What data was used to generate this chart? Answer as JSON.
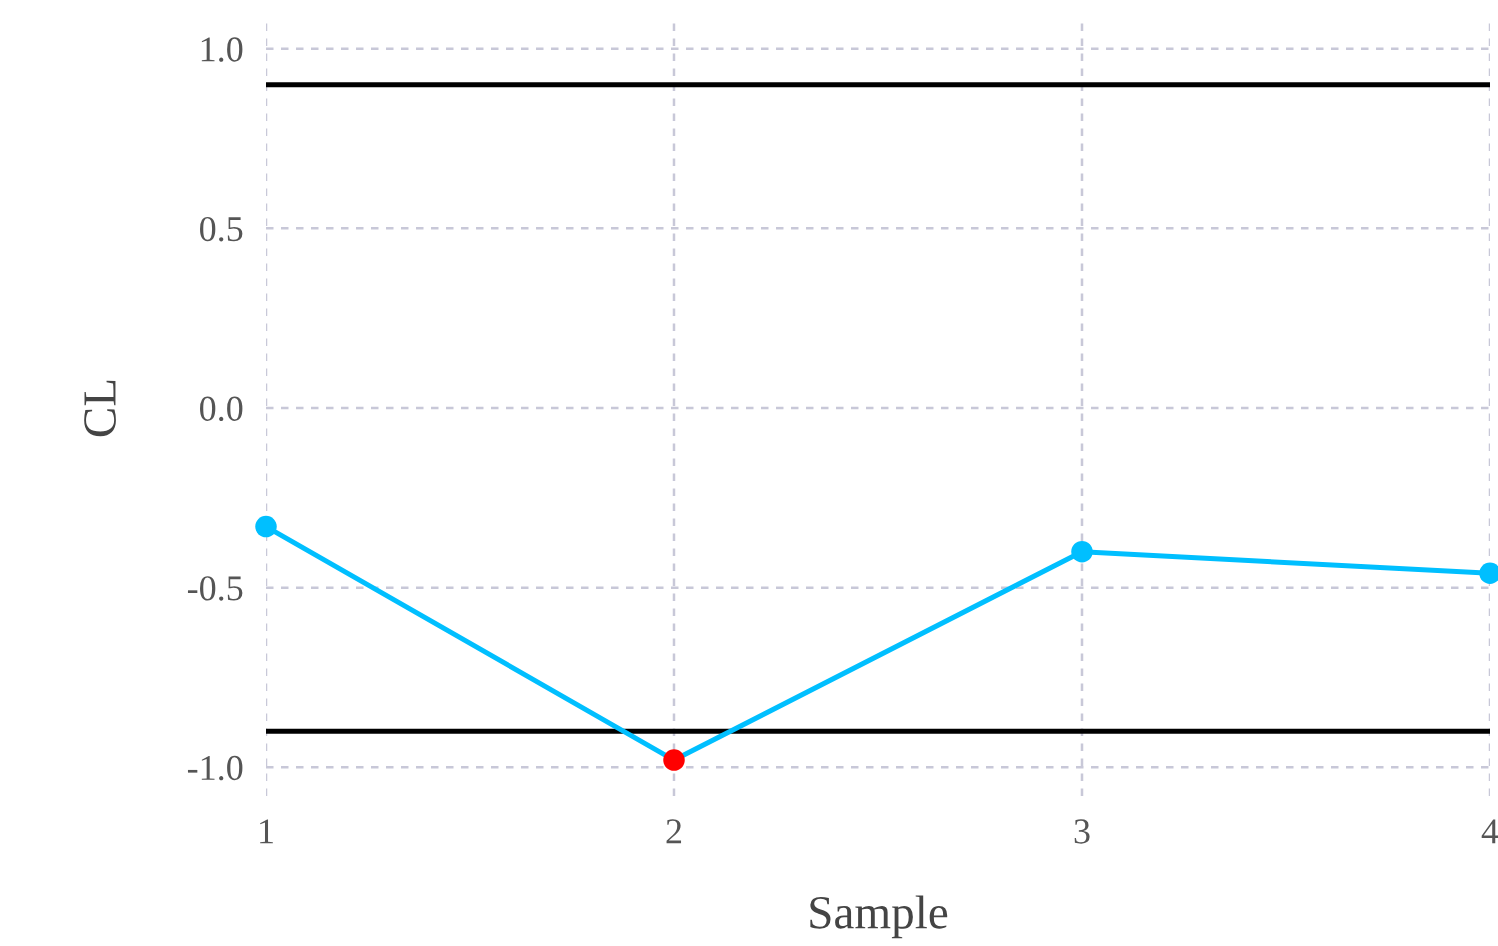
{
  "chart_data": {
    "type": "line",
    "xlabel": "Sample",
    "ylabel": "CL",
    "x": [
      1,
      2,
      3,
      4
    ],
    "series": [
      {
        "color": "#00bfff",
        "colors": [
          "#00bfff",
          "#ff0000",
          "#00bfff",
          "#00bfff"
        ],
        "values": [
          -0.33,
          -0.98,
          -0.4,
          -0.46
        ]
      }
    ],
    "marker": "circle",
    "xlim": [
      1,
      4
    ],
    "xticks": [
      1,
      2,
      3,
      4
    ],
    "ylim": [
      -1.08,
      1.08
    ],
    "yticks": [
      {
        "value": -1.0,
        "label": "-1.0"
      },
      {
        "value": -0.5,
        "label": "-0.5"
      },
      {
        "value": 0.0,
        "label": "0.0"
      },
      {
        "value": 0.5,
        "label": "0.5"
      },
      {
        "value": 1.0,
        "label": "1.0"
      }
    ],
    "ref_lines": [
      {
        "axis": "y",
        "value": 0.9,
        "color": "#000000"
      },
      {
        "axis": "y",
        "value": -0.9,
        "color": "#000000"
      }
    ],
    "grid": true
  }
}
